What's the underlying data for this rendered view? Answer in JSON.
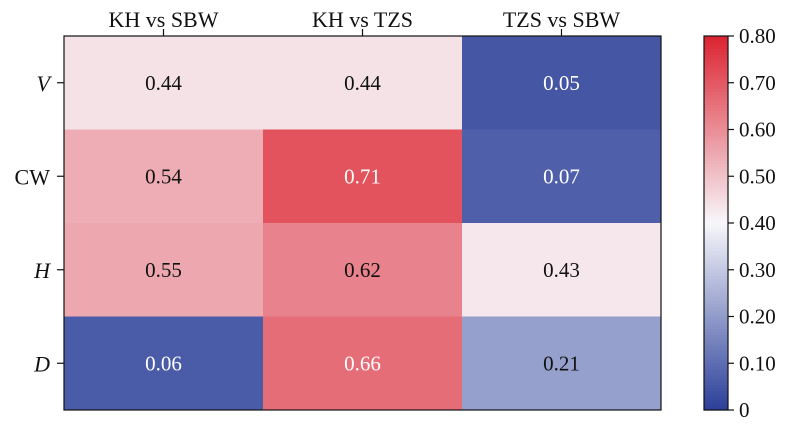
{
  "chart_data": {
    "type": "heatmap",
    "title": "",
    "xlabel": "",
    "ylabel": "",
    "columns": [
      "KH vs SBW",
      "KH vs TZS",
      "TZS vs SBW"
    ],
    "rows": [
      "V",
      "CW",
      "H",
      "D"
    ],
    "italic_rows": [
      "V",
      "H",
      "D"
    ],
    "values": [
      [
        0.44,
        0.44,
        0.05
      ],
      [
        0.54,
        0.71,
        0.07
      ],
      [
        0.55,
        0.62,
        0.43
      ],
      [
        0.06,
        0.66,
        0.21
      ]
    ],
    "value_labels": [
      [
        "0.44",
        "0.44",
        "0.05"
      ],
      [
        "0.54",
        "0.71",
        "0.07"
      ],
      [
        "0.55",
        "0.62",
        "0.43"
      ],
      [
        "0.06",
        "0.66",
        "0.21"
      ]
    ],
    "colorbar": {
      "min": 0,
      "max": 0.8,
      "ticks": [
        0,
        0.1,
        0.2,
        0.3,
        0.4,
        0.5,
        0.6,
        0.7,
        0.8
      ],
      "tick_labels": [
        "0",
        "0.10",
        "0.20",
        "0.30",
        "0.40",
        "0.50",
        "0.60",
        "0.70",
        "0.80"
      ],
      "colormap": [
        "#2b3f99",
        "#f7f7fb",
        "#dc2331"
      ],
      "position": "right"
    },
    "grid": false
  }
}
